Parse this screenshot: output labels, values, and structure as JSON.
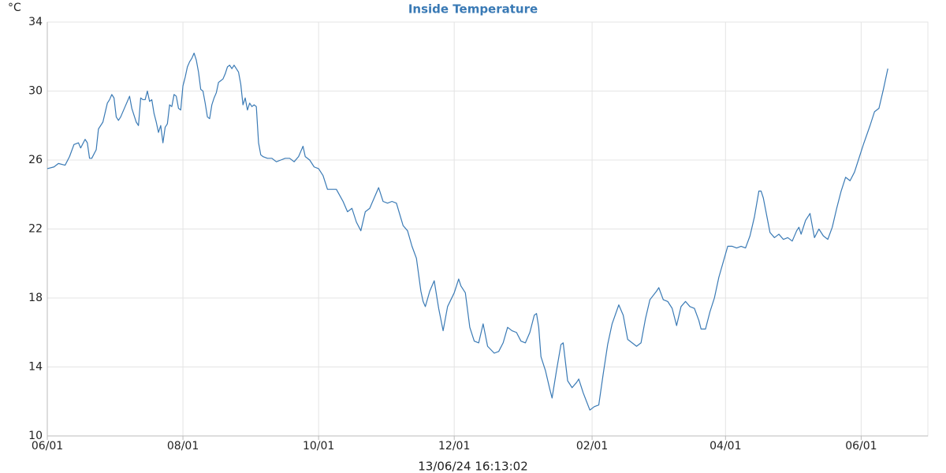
{
  "chart_data": {
    "type": "line",
    "title": "Inside Temperature",
    "y_label": "°C",
    "x_label": "13/06/24 16:13:02",
    "grid": true,
    "xlim": [
      0,
      396
    ],
    "ylim": [
      10,
      34
    ],
    "yticks": [
      10,
      14,
      18,
      22,
      26,
      30,
      34
    ],
    "xticks": [
      {
        "value": 0,
        "label": "06/01"
      },
      {
        "value": 61,
        "label": "08/01"
      },
      {
        "value": 122,
        "label": "10/01"
      },
      {
        "value": 183,
        "label": "12/01"
      },
      {
        "value": 245,
        "label": "02/01"
      },
      {
        "value": 305,
        "label": "04/01"
      },
      {
        "value": 366,
        "label": "06/01"
      }
    ],
    "x": [
      0,
      3,
      5,
      8,
      10,
      12,
      14,
      15,
      17,
      18,
      19,
      20,
      22,
      23,
      25,
      27,
      28,
      29,
      30,
      31,
      32,
      33,
      35,
      37,
      38,
      40,
      41,
      42,
      43,
      44,
      45,
      46,
      47,
      48,
      49,
      50,
      51,
      52,
      53,
      54,
      55,
      56,
      57,
      58,
      59,
      60,
      61,
      62,
      63,
      64,
      65,
      66,
      67,
      68,
      69,
      70,
      71,
      72,
      73,
      74,
      75,
      76,
      77,
      78,
      79,
      80,
      81,
      82,
      83,
      84,
      85,
      86,
      87,
      88,
      89,
      90,
      91,
      92,
      93,
      94,
      95,
      96,
      97,
      99,
      101,
      103,
      105,
      107,
      109,
      111,
      113,
      114,
      115,
      116,
      118,
      119,
      120,
      122,
      124,
      126,
      128,
      130,
      133,
      135,
      137,
      139,
      141,
      143,
      145,
      147,
      149,
      151,
      153,
      155,
      157,
      160,
      162,
      164,
      166,
      168,
      169,
      170,
      172,
      174,
      176,
      178,
      180,
      183,
      185,
      186,
      188,
      190,
      192,
      194,
      196,
      198,
      201,
      203,
      205,
      207,
      209,
      211,
      213,
      215,
      217,
      219,
      220,
      221,
      222,
      224,
      226,
      227,
      229,
      231,
      232,
      234,
      236,
      238,
      239,
      241,
      244,
      246,
      248,
      250,
      252,
      254,
      257,
      259,
      261,
      263,
      265,
      267,
      269,
      271,
      274,
      275,
      277,
      279,
      281,
      283,
      285,
      287,
      289,
      291,
      293,
      294,
      296,
      298,
      300,
      302,
      304,
      306,
      308,
      310,
      312,
      314,
      316,
      318,
      320,
      321,
      322,
      325,
      327,
      329,
      331,
      333,
      335,
      337,
      338,
      339,
      341,
      343,
      345,
      347,
      349,
      351,
      353,
      355,
      357,
      359,
      361,
      363,
      365,
      367,
      370,
      372,
      374,
      376,
      378
    ],
    "series": [
      {
        "name": "Inside Temperature",
        "color": "#3a7ab5",
        "values": [
          25.5,
          25.6,
          25.8,
          25.7,
          26.2,
          26.9,
          27.0,
          26.7,
          27.2,
          27.0,
          26.1,
          26.1,
          26.6,
          27.8,
          28.2,
          29.3,
          29.5,
          29.8,
          29.6,
          28.5,
          28.3,
          28.5,
          29.1,
          29.7,
          29.0,
          28.2,
          28.0,
          29.6,
          29.5,
          29.5,
          30.0,
          29.4,
          29.5,
          28.7,
          28.2,
          27.6,
          28.0,
          27.0,
          27.9,
          28.1,
          29.2,
          29.1,
          29.8,
          29.7,
          29.0,
          28.9,
          30.3,
          30.8,
          31.4,
          31.7,
          31.9,
          32.2,
          31.8,
          31.1,
          30.1,
          30.0,
          29.3,
          28.5,
          28.4,
          29.2,
          29.6,
          29.9,
          30.5,
          30.6,
          30.7,
          31.0,
          31.4,
          31.5,
          31.3,
          31.5,
          31.3,
          31.1,
          30.4,
          29.2,
          29.6,
          28.9,
          29.3,
          29.1,
          29.2,
          29.1,
          27.0,
          26.3,
          26.2,
          26.1,
          26.1,
          25.9,
          26.0,
          26.1,
          26.1,
          25.9,
          26.2,
          26.5,
          26.8,
          26.2,
          26.0,
          25.8,
          25.6,
          25.5,
          25.1,
          24.3,
          24.3,
          24.3,
          23.6,
          23.0,
          23.2,
          22.4,
          21.9,
          23.0,
          23.2,
          23.8,
          24.4,
          23.6,
          23.5,
          23.6,
          23.5,
          22.2,
          21.9,
          21.0,
          20.3,
          18.4,
          17.8,
          17.5,
          18.4,
          19.0,
          17.4,
          16.1,
          17.5,
          18.3,
          19.1,
          18.7,
          18.3,
          16.3,
          15.5,
          15.4,
          16.5,
          15.2,
          14.8,
          14.9,
          15.4,
          16.3,
          16.1,
          16.0,
          15.5,
          15.4,
          16.0,
          17.0,
          17.1,
          16.3,
          14.6,
          13.8,
          12.7,
          12.2,
          13.8,
          15.3,
          15.4,
          13.2,
          12.8,
          13.1,
          13.3,
          12.5,
          11.5,
          11.7,
          11.8,
          13.6,
          15.3,
          16.5,
          17.6,
          17.0,
          15.6,
          15.4,
          15.2,
          15.4,
          16.8,
          17.9,
          18.4,
          18.6,
          17.9,
          17.8,
          17.4,
          16.4,
          17.5,
          17.8,
          17.5,
          17.4,
          16.7,
          16.2,
          16.2,
          17.2,
          18.0,
          19.2,
          20.1,
          21.0,
          21.0,
          20.9,
          21.0,
          20.9,
          21.6,
          22.7,
          24.2,
          24.2,
          23.8,
          21.8,
          21.5,
          21.7,
          21.4,
          21.5,
          21.3,
          21.9,
          22.1,
          21.7,
          22.5,
          22.9,
          21.5,
          22.0,
          21.6,
          21.4,
          22.1,
          23.2,
          24.2,
          25.0,
          24.8,
          25.3,
          26.1,
          26.9,
          28.0,
          28.8,
          29.0,
          30.1,
          31.3
        ]
      }
    ]
  }
}
